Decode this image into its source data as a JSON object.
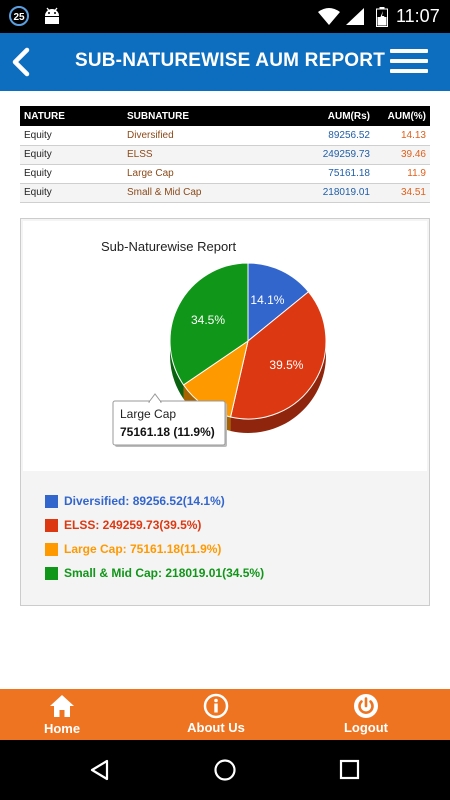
{
  "status_bar": {
    "badge": "25",
    "time": "11:07",
    "icons": [
      "notification-badge-icon",
      "android-icon",
      "wifi-icon",
      "cell-signal-icon",
      "battery-icon"
    ]
  },
  "header": {
    "title": "SUB-NATUREWISE AUM REPORT",
    "back_icon": "chevron-left-icon",
    "menu_icon": "hamburger-menu-icon",
    "color": "#0d6ec0"
  },
  "table": {
    "columns": [
      "NATURE",
      "SUBNATURE",
      "AUM(Rs)",
      "AUM(%)"
    ],
    "rows": [
      [
        "Equity",
        "Diversified",
        "89256.52",
        "14.13"
      ],
      [
        "Equity",
        "ELSS",
        "249259.73",
        "39.46"
      ],
      [
        "Equity",
        "Large Cap",
        "75161.18",
        "11.9"
      ],
      [
        "Equity",
        "Small & Mid Cap",
        "218019.01",
        "34.51"
      ]
    ]
  },
  "chart_data": {
    "type": "pie",
    "title": "Sub-Naturewise Report",
    "categories": [
      "Diversified",
      "ELSS",
      "Large Cap",
      "Small & Mid Cap"
    ],
    "values": [
      89256.52,
      249259.73,
      75161.18,
      218019.01
    ],
    "percent_labels": [
      "14.1%",
      "39.5%",
      "",
      "34.5%"
    ],
    "colors": [
      "#3366cc",
      "#dc3912",
      "#ff9900",
      "#109618"
    ],
    "tooltip": {
      "title": "Large Cap",
      "value": "75161.18 (11.9%)"
    },
    "legend": [
      "Diversified: 89256.52(14.1%)",
      "ELSS: 249259.73(39.5%)",
      "Large Cap: 75161.18(11.9%)",
      "Small & Mid Cap: 218019.01(34.5%)"
    ],
    "legend_position": "bottom"
  },
  "bottom_nav": {
    "color": "#ee7422",
    "items": [
      {
        "label": "Home",
        "icon": "home-icon"
      },
      {
        "label": "About Us",
        "icon": "info-icon"
      },
      {
        "label": "Logout",
        "icon": "power-icon"
      }
    ]
  },
  "system_nav": {
    "icons": [
      "back-triangle-icon",
      "home-circle-icon",
      "recents-square-icon"
    ]
  }
}
